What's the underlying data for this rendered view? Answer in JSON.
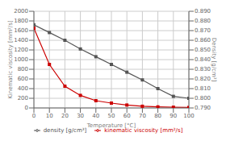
{
  "chart_data": {
    "type": "line",
    "xlabel": "Temperature [°C]",
    "ylabel": "Kinematic viscosity [mm²/s]",
    "y2label": "Density [g/cm³]",
    "x": [
      0,
      10,
      20,
      30,
      40,
      50,
      60,
      70,
      80,
      90,
      100
    ],
    "series": [
      {
        "name": "kinematic viscosity [mm²/s]",
        "color": "#cc0000",
        "marker": "square",
        "values": [
          1650,
          900,
          450,
          260,
          150,
          100,
          60,
          35,
          22,
          15,
          10
        ]
      },
      {
        "name": "density [g/cm³]",
        "color": "#555555",
        "marker": "square",
        "axis": "y2",
        "values": [
          0.876,
          0.868,
          0.86,
          0.851,
          0.843,
          0.835,
          0.827,
          0.819,
          0.81,
          0.802,
          0.8
        ]
      }
    ],
    "xlim": [
      0,
      100
    ],
    "xticks": [
      0,
      10,
      20,
      30,
      40,
      50,
      60,
      70,
      80,
      90,
      100
    ],
    "ylim": [
      0,
      2000
    ],
    "yticks": [
      0,
      200,
      400,
      600,
      800,
      1000,
      1200,
      1400,
      1600,
      1800,
      2000
    ],
    "y2lim": [
      0.79,
      0.89
    ],
    "y2ticks": [
      {
        "value": 0.79,
        "label": "0.790"
      },
      {
        "value": 0.8,
        "label": "0.800"
      },
      {
        "value": 0.81,
        "label": "0.810"
      },
      {
        "value": 0.82,
        "label": "0.820"
      },
      {
        "value": 0.83,
        "label": "0.830"
      },
      {
        "value": 0.84,
        "label": "0.840"
      },
      {
        "value": 0.85,
        "label": "0.850"
      },
      {
        "value": 0.86,
        "label": "0.860"
      },
      {
        "value": 0.87,
        "label": "0.870"
      },
      {
        "value": 0.88,
        "label": "0.880"
      },
      {
        "value": 0.89,
        "label": "0.890"
      }
    ],
    "grid": true,
    "legend": "bottom"
  }
}
